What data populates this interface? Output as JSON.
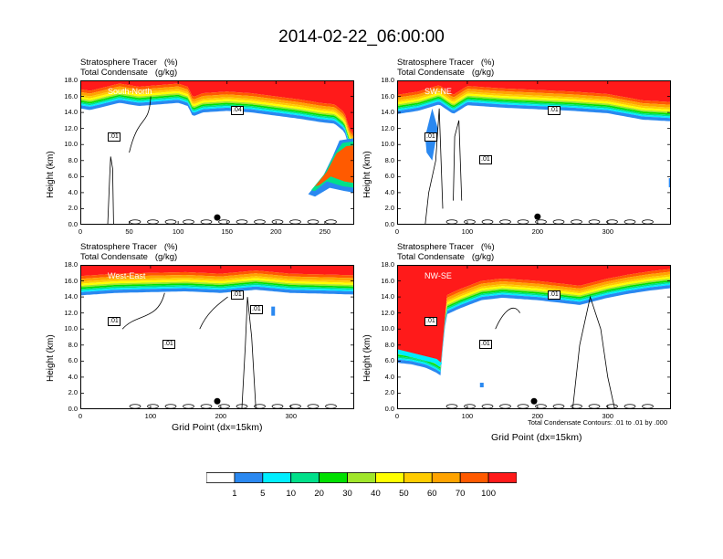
{
  "title": "2014-02-22_06:00:00",
  "header_line1": "Stratosphere Tracer   (%)",
  "header_line2": "Total Condensate   (g/kg)",
  "ylabel": "Height (km)",
  "xlabel": "Grid Point (dx=15km)",
  "contour_note": "Total Condensate Contours: .01 to .01 by .000",
  "y_ticks": [
    "0.0",
    "2.0",
    "4.0",
    "6.0",
    "8.0",
    "10.0",
    "12.0",
    "14.0",
    "16.0",
    "18.0"
  ],
  "colors": {
    "levels": [
      "#ffffff",
      "#2a88f0",
      "#00eeff",
      "#00e08a",
      "#00e000",
      "#a0e62a",
      "#ffff00",
      "#ffcc00",
      "#ffa300",
      "#ff5a00",
      "#ff1a1a"
    ],
    "contour": "#000000"
  },
  "colorbar_ticks": [
    "1",
    "5",
    "10",
    "20",
    "30",
    "40",
    "50",
    "60",
    "70",
    "100"
  ],
  "chart_data": [
    {
      "type": "heatmap",
      "panel": "South-North",
      "title": "Stratosphere Tracer (%) / Total Condensate (g/kg)",
      "x_ticks": [
        "0",
        "50",
        "100",
        "150",
        "200",
        "250"
      ],
      "x_tick_values": [
        0,
        50,
        100,
        150,
        200,
        250
      ],
      "xlim": [
        0,
        280
      ],
      "ylim": [
        0,
        18
      ],
      "ylabel": "Height (km)",
      "tracer_top_km": [
        [
          0,
          15.9
        ],
        [
          10,
          15.7
        ],
        [
          20,
          16.0
        ],
        [
          40,
          16.6
        ],
        [
          60,
          16.2
        ],
        [
          80,
          16.4
        ],
        [
          100,
          16.6
        ],
        [
          110,
          16.2
        ],
        [
          115,
          14.9
        ],
        [
          125,
          15.4
        ],
        [
          150,
          15.6
        ],
        [
          175,
          15.4
        ],
        [
          200,
          15.0
        ],
        [
          225,
          14.6
        ],
        [
          245,
          14.2
        ],
        [
          260,
          14.0
        ],
        [
          270,
          13.0
        ],
        [
          275,
          11.0
        ],
        [
          280,
          10.2
        ]
      ],
      "tracer_intrusion_km": [
        [
          238,
          4.8
        ],
        [
          250,
          6.5
        ],
        [
          260,
          8.0
        ],
        [
          265,
          10.0
        ],
        [
          280,
          10.0
        ]
      ],
      "contour_labels": [
        ".01",
        ".04"
      ],
      "marker_x": 140,
      "marker_km": 0.9
    },
    {
      "type": "heatmap",
      "panel": "SW-NE",
      "title": "Stratosphere Tracer (%) / Total Condensate (g/kg)",
      "x_ticks": [
        "0",
        "100",
        "200",
        "300"
      ],
      "x_tick_values": [
        0,
        100,
        200,
        300
      ],
      "xlim": [
        0,
        390
      ],
      "ylim": [
        0,
        18
      ],
      "ylabel": "Height (km)",
      "tracer_top_km": [
        [
          0,
          15.2
        ],
        [
          30,
          15.6
        ],
        [
          60,
          16.4
        ],
        [
          80,
          15.2
        ],
        [
          100,
          16.3
        ],
        [
          150,
          16.0
        ],
        [
          200,
          15.8
        ],
        [
          250,
          15.6
        ],
        [
          300,
          15.3
        ],
        [
          350,
          14.5
        ],
        [
          390,
          14.3
        ]
      ],
      "contour_labels": [
        ".01",
        ".01",
        ".01"
      ],
      "marker_x": 200,
      "marker_km": 1.0
    },
    {
      "type": "heatmap",
      "panel": "West-East",
      "title": "Stratosphere Tracer (%) / Total Condensate (g/kg)",
      "x_ticks": [
        "0",
        "100",
        "200",
        "300"
      ],
      "x_tick_values": [
        0,
        100,
        200,
        300
      ],
      "xlim": [
        0,
        390
      ],
      "ylim": [
        0,
        18
      ],
      "ylabel": "Height (km)",
      "tracer_top_km": [
        [
          0,
          15.6
        ],
        [
          50,
          15.9
        ],
        [
          100,
          16.0
        ],
        [
          150,
          16.1
        ],
        [
          200,
          15.9
        ],
        [
          250,
          16.3
        ],
        [
          300,
          15.9
        ],
        [
          350,
          15.8
        ],
        [
          390,
          15.7
        ]
      ],
      "contour_labels": [
        ".01",
        ".01",
        ".01",
        ".01"
      ],
      "marker_x": 195,
      "marker_km": 1.0
    },
    {
      "type": "heatmap",
      "panel": "NW-SE",
      "title": "Stratosphere Tracer (%) / Total Condensate (g/kg)",
      "x_ticks": [
        "0",
        "100",
        "200",
        "300"
      ],
      "x_tick_values": [
        0,
        100,
        200,
        300
      ],
      "xlim": [
        0,
        390
      ],
      "ylim": [
        0,
        18
      ],
      "ylabel": "Height (km)",
      "tracer_top_km": [
        [
          0,
          7.2
        ],
        [
          20,
          7.0
        ],
        [
          40,
          6.6
        ],
        [
          55,
          6.0
        ],
        [
          62,
          5.6
        ],
        [
          65,
          9.0
        ],
        [
          70,
          13.2
        ],
        [
          90,
          14.0
        ],
        [
          120,
          15.0
        ],
        [
          150,
          15.3
        ],
        [
          200,
          15.0
        ],
        [
          230,
          14.7
        ],
        [
          260,
          14.4
        ],
        [
          300,
          15.3
        ],
        [
          330,
          15.8
        ],
        [
          360,
          16.2
        ],
        [
          390,
          16.5
        ]
      ],
      "contour_labels": [
        ".01",
        ".01",
        ".01"
      ],
      "marker_x": 195,
      "marker_km": 1.0
    }
  ]
}
